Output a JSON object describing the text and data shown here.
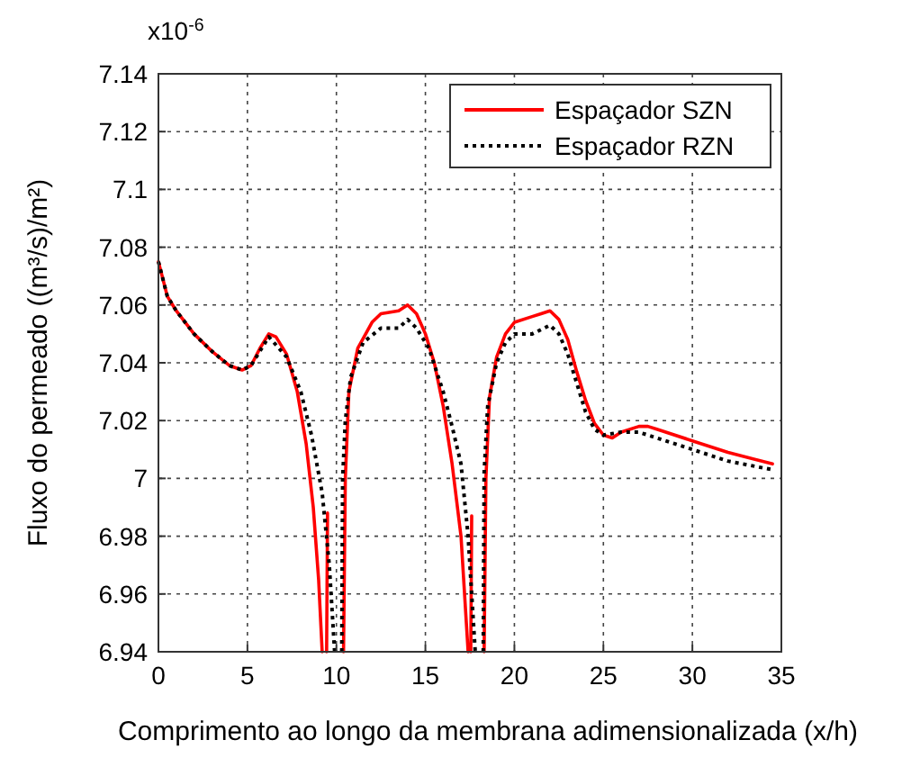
{
  "chart_data": {
    "type": "line",
    "xlabel": "Comprimento ao longo da membrana adimensionalizada (x/h)",
    "ylabel": "Fluxo do permeado ((m³/s)/m²)",
    "annotations": [
      "x10$^{-6}$"
    ],
    "xlim": [
      0,
      35
    ],
    "xticks": [
      0,
      5,
      10,
      15,
      20,
      25,
      30,
      35
    ],
    "ylim": [
      6.94,
      7.14
    ],
    "yticks": [
      6.94,
      6.96,
      6.98,
      7,
      7.02,
      7.04,
      7.06,
      7.08,
      7.1,
      7.12,
      7.14
    ],
    "grid": true,
    "legend": "top right",
    "marker": "none",
    "series": [
      {
        "name": "Espaçador SZN",
        "color": "#ff0000",
        "line_style": "solid",
        "x": [
          0,
          0.5,
          1,
          2,
          3,
          4,
          4.7,
          5.2,
          5.7,
          6.2,
          6.6,
          7.2,
          7.8,
          8.3,
          8.7,
          9,
          9.2,
          9.3,
          9.45,
          9.5,
          9.55,
          10.4,
          10.5,
          10.7,
          11.2,
          12,
          12.5,
          13.5,
          14,
          14.5,
          15,
          15.5,
          16,
          16.5,
          17,
          17.3,
          17.4,
          17.5,
          17.55,
          17.6,
          17.7,
          18.3,
          18.4,
          18.6,
          19,
          19.5,
          20,
          21,
          21.5,
          22,
          22.5,
          23,
          23.5,
          24,
          24.5,
          25,
          25.5,
          26,
          27,
          27.5,
          28,
          30,
          32,
          34.5
        ],
        "values": [
          7.075,
          7.063,
          7.058,
          7.05,
          7.044,
          7.039,
          7.0375,
          7.039,
          7.045,
          7.05,
          7.049,
          7.043,
          7.03,
          7.012,
          6.99,
          6.965,
          6.94,
          null,
          6.94,
          6.988,
          null,
          6.94,
          7,
          7.03,
          7.045,
          7.054,
          7.057,
          7.058,
          7.06,
          7.057,
          7.05,
          7.04,
          7.025,
          7.005,
          6.98,
          6.95,
          6.94,
          null,
          6.94,
          6.987,
          null,
          6.94,
          7,
          7.028,
          7.042,
          7.05,
          7.054,
          7.056,
          7.057,
          7.058,
          7.055,
          7.048,
          7.037,
          7.027,
          7.019,
          7.015,
          7.014,
          7.016,
          7.018,
          7.018,
          7.017,
          7.013,
          7.009,
          7.005
        ]
      },
      {
        "name": "Espaçador RZN",
        "color": "#000000",
        "line_style": "dotted",
        "x": [
          0,
          0.5,
          1,
          2,
          3,
          4,
          4.7,
          5.2,
          5.7,
          6.2,
          7.2,
          8,
          8.6,
          9.2,
          9.6,
          9.9,
          10,
          10.3,
          10.35,
          10.5,
          10.8,
          11.5,
          12.5,
          13.5,
          14,
          14.5,
          15.2,
          16,
          16.5,
          17,
          17.4,
          17.7,
          17.8,
          18,
          18.25,
          18.3,
          18.5,
          19,
          19.5,
          20,
          21,
          22,
          22.5,
          23,
          23.5,
          24,
          24.5,
          25,
          26,
          27,
          28,
          30,
          32,
          34.5
        ],
        "values": [
          7.075,
          7.063,
          7.058,
          7.05,
          7.044,
          7.039,
          7.0375,
          7.039,
          7.044,
          7.049,
          7.042,
          7.03,
          7.015,
          6.995,
          6.97,
          6.94,
          null,
          6.94,
          7,
          7.02,
          7.035,
          7.047,
          7.052,
          7.052,
          7.055,
          7.052,
          7.045,
          7.03,
          7.018,
          7.005,
          6.98,
          6.95,
          6.94,
          null,
          6.94,
          7.002,
          7.025,
          7.04,
          7.047,
          7.05,
          7.05,
          7.053,
          7.05,
          7.043,
          7.033,
          7.023,
          7.017,
          7.015,
          7.016,
          7.016,
          7.014,
          7.01,
          7.006,
          7.003
        ]
      }
    ]
  }
}
